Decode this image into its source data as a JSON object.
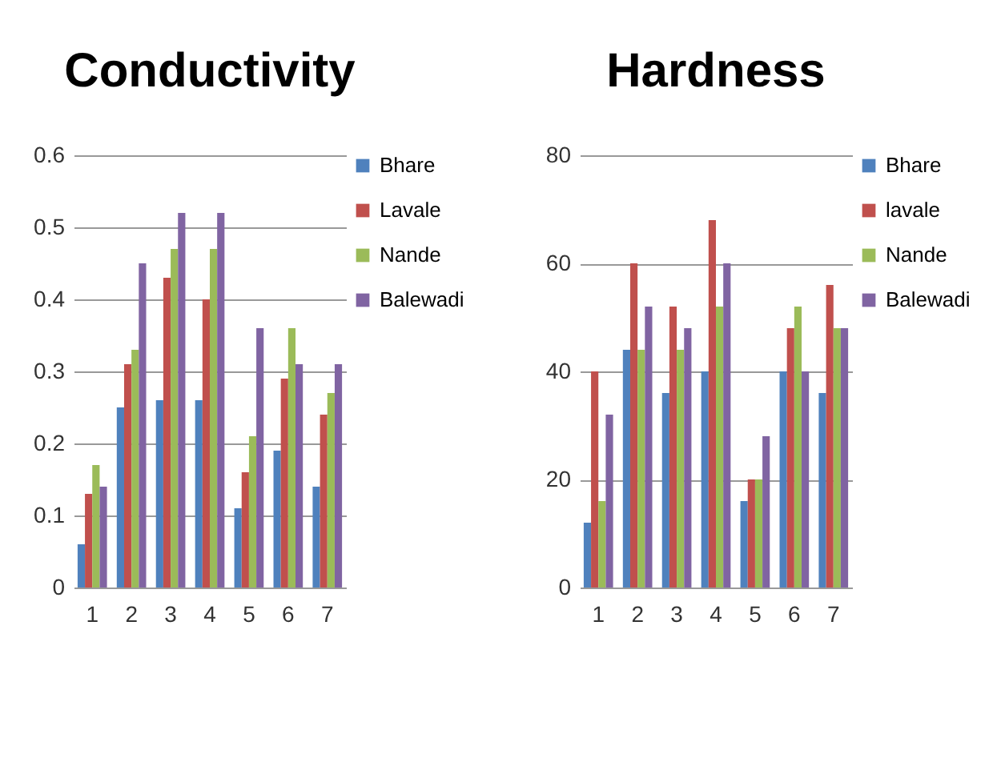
{
  "chart_data": [
    {
      "type": "bar",
      "title": "Conductivity",
      "categories": [
        "1",
        "2",
        "3",
        "4",
        "5",
        "6",
        "7"
      ],
      "series": [
        {
          "name": "Bhare",
          "color": "#4f81bd",
          "values": [
            0.06,
            0.25,
            0.26,
            0.26,
            0.11,
            0.19,
            0.14
          ]
        },
        {
          "name": "Lavale",
          "color": "#c0504d",
          "values": [
            0.13,
            0.31,
            0.43,
            0.4,
            0.16,
            0.29,
            0.24
          ]
        },
        {
          "name": "Nande",
          "color": "#9bbb59",
          "values": [
            0.17,
            0.33,
            0.47,
            0.47,
            0.21,
            0.36,
            0.27
          ]
        },
        {
          "name": "Balewadi",
          "color": "#8064a2",
          "values": [
            0.14,
            0.45,
            0.52,
            0.52,
            0.36,
            0.31,
            0.31
          ]
        }
      ],
      "ylim": [
        0,
        0.6
      ],
      "yticks": [
        0,
        0.1,
        0.2,
        0.3,
        0.4,
        0.5,
        0.6
      ],
      "grid": true,
      "legend": "right"
    },
    {
      "type": "bar",
      "title": "Hardness",
      "categories": [
        "1",
        "2",
        "3",
        "4",
        "5",
        "6",
        "7"
      ],
      "series": [
        {
          "name": "Bhare",
          "color": "#4f81bd",
          "values": [
            12,
            44,
            36,
            40,
            16,
            40,
            36
          ]
        },
        {
          "name": "lavale",
          "color": "#c0504d",
          "values": [
            40,
            60,
            52,
            68,
            20,
            48,
            56
          ]
        },
        {
          "name": "Nande",
          "color": "#9bbb59",
          "values": [
            16,
            44,
            44,
            52,
            20,
            52,
            48
          ]
        },
        {
          "name": "Balewadi",
          "color": "#8064a2",
          "values": [
            32,
            52,
            48,
            60,
            28,
            40,
            48
          ]
        }
      ],
      "ylim": [
        0,
        80
      ],
      "yticks": [
        0,
        20,
        40,
        60,
        80
      ],
      "grid": true,
      "legend": "right"
    }
  ]
}
